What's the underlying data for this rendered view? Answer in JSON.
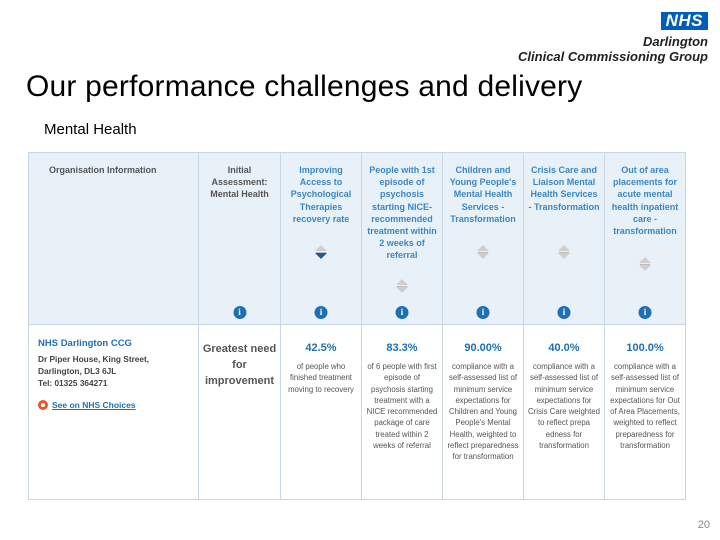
{
  "logo": {
    "badge": "NHS",
    "line1": "Darlington",
    "line2": "Clinical Commissioning Group"
  },
  "title": "Our performance challenges and delivery",
  "subtitle": "Mental Health",
  "table": {
    "columns": [
      {
        "header": "Organisation Information",
        "has_sort": false,
        "has_info": false
      },
      {
        "header": "Initial Assessment: Mental Health",
        "has_sort": false,
        "has_info": true
      },
      {
        "header": "Improving Access to Psychological Therapies recovery rate",
        "has_sort": true,
        "sort_active": "down",
        "has_info": true
      },
      {
        "header": "People with 1st episode of psychosis starting NICE-recommended treatment within 2 weeks of referral",
        "has_sort": true,
        "has_info": true
      },
      {
        "header": "Children and Young People's Mental Health Services - Transformation",
        "has_sort": true,
        "has_info": true
      },
      {
        "header": "Crisis Care and Liaison Mental Health Services - Transformation",
        "has_sort": true,
        "has_info": true
      },
      {
        "header": "Out of area placements for acute mental health inpatient care - transformation",
        "has_sort": true,
        "has_info": true
      }
    ],
    "info_glyph": "i",
    "organisation": {
      "name": "NHS Darlington CCG",
      "address_lines": [
        "Dr Piper House, King Street,",
        "Darlington, DL3 6JL",
        "Tel: 01325 364271"
      ],
      "link": "See on NHS Choices",
      "link_icon": "nhs-choices-icon"
    },
    "cells": [
      {
        "value": "Greatest need for improvement",
        "desc": ""
      },
      {
        "value": "42.5%",
        "desc": "of people who finished treatment moving to recovery"
      },
      {
        "value": "83.3%",
        "desc": "of 6 people with first episode of psychosis starting treatment with a NICE recommended package of care treated within 2 weeks of referral"
      },
      {
        "value": "90.00%",
        "desc": "compliance with a self-assessed list of minimum service expectations for Children and Young People's Mental Health, weighted to reflect preparedness for transformation"
      },
      {
        "value": "40.0%",
        "desc": "compliance with a self-assessed list of minimum service expectations for Crisis Care weighted to reflect prepa edness for transformation"
      },
      {
        "value": "100.0%",
        "desc": "compliance with a self-assessed list of minimum service expectations for Out of Area Placements, weighted to reflect preparedness for transformation"
      }
    ]
  },
  "page_number": "20"
}
